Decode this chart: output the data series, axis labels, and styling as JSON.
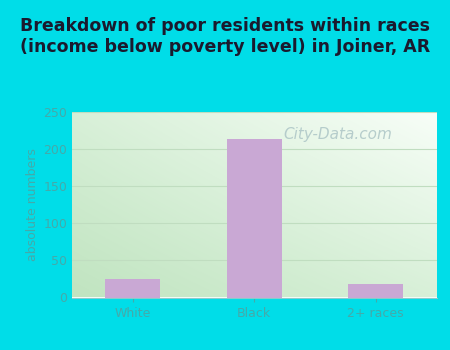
{
  "categories": [
    "White",
    "Black",
    "2+ races"
  ],
  "values": [
    25,
    213,
    18
  ],
  "bar_color": "#c9a8d4",
  "title": "Breakdown of poor residents within races\n(income below poverty level) in Joiner, AR",
  "ylabel": "absolute numbers",
  "ylim": [
    0,
    250
  ],
  "yticks": [
    0,
    50,
    100,
    150,
    200,
    250
  ],
  "background_outer": "#00dde8",
  "bg_top_left": "#d8f0d8",
  "bg_top_right": "#f5faf5",
  "bg_bottom_left": "#c8eac8",
  "bg_bottom_right": "#e8f5e8",
  "grid_color": "#c0ddc0",
  "title_fontsize": 12.5,
  "ylabel_fontsize": 9,
  "tick_fontsize": 9,
  "bar_width": 0.45,
  "watermark_text": "City-Data.com",
  "watermark_color": "#b0c8c8",
  "watermark_fontsize": 11,
  "tick_color": "#44aaaa",
  "title_color": "#1a1a2e"
}
